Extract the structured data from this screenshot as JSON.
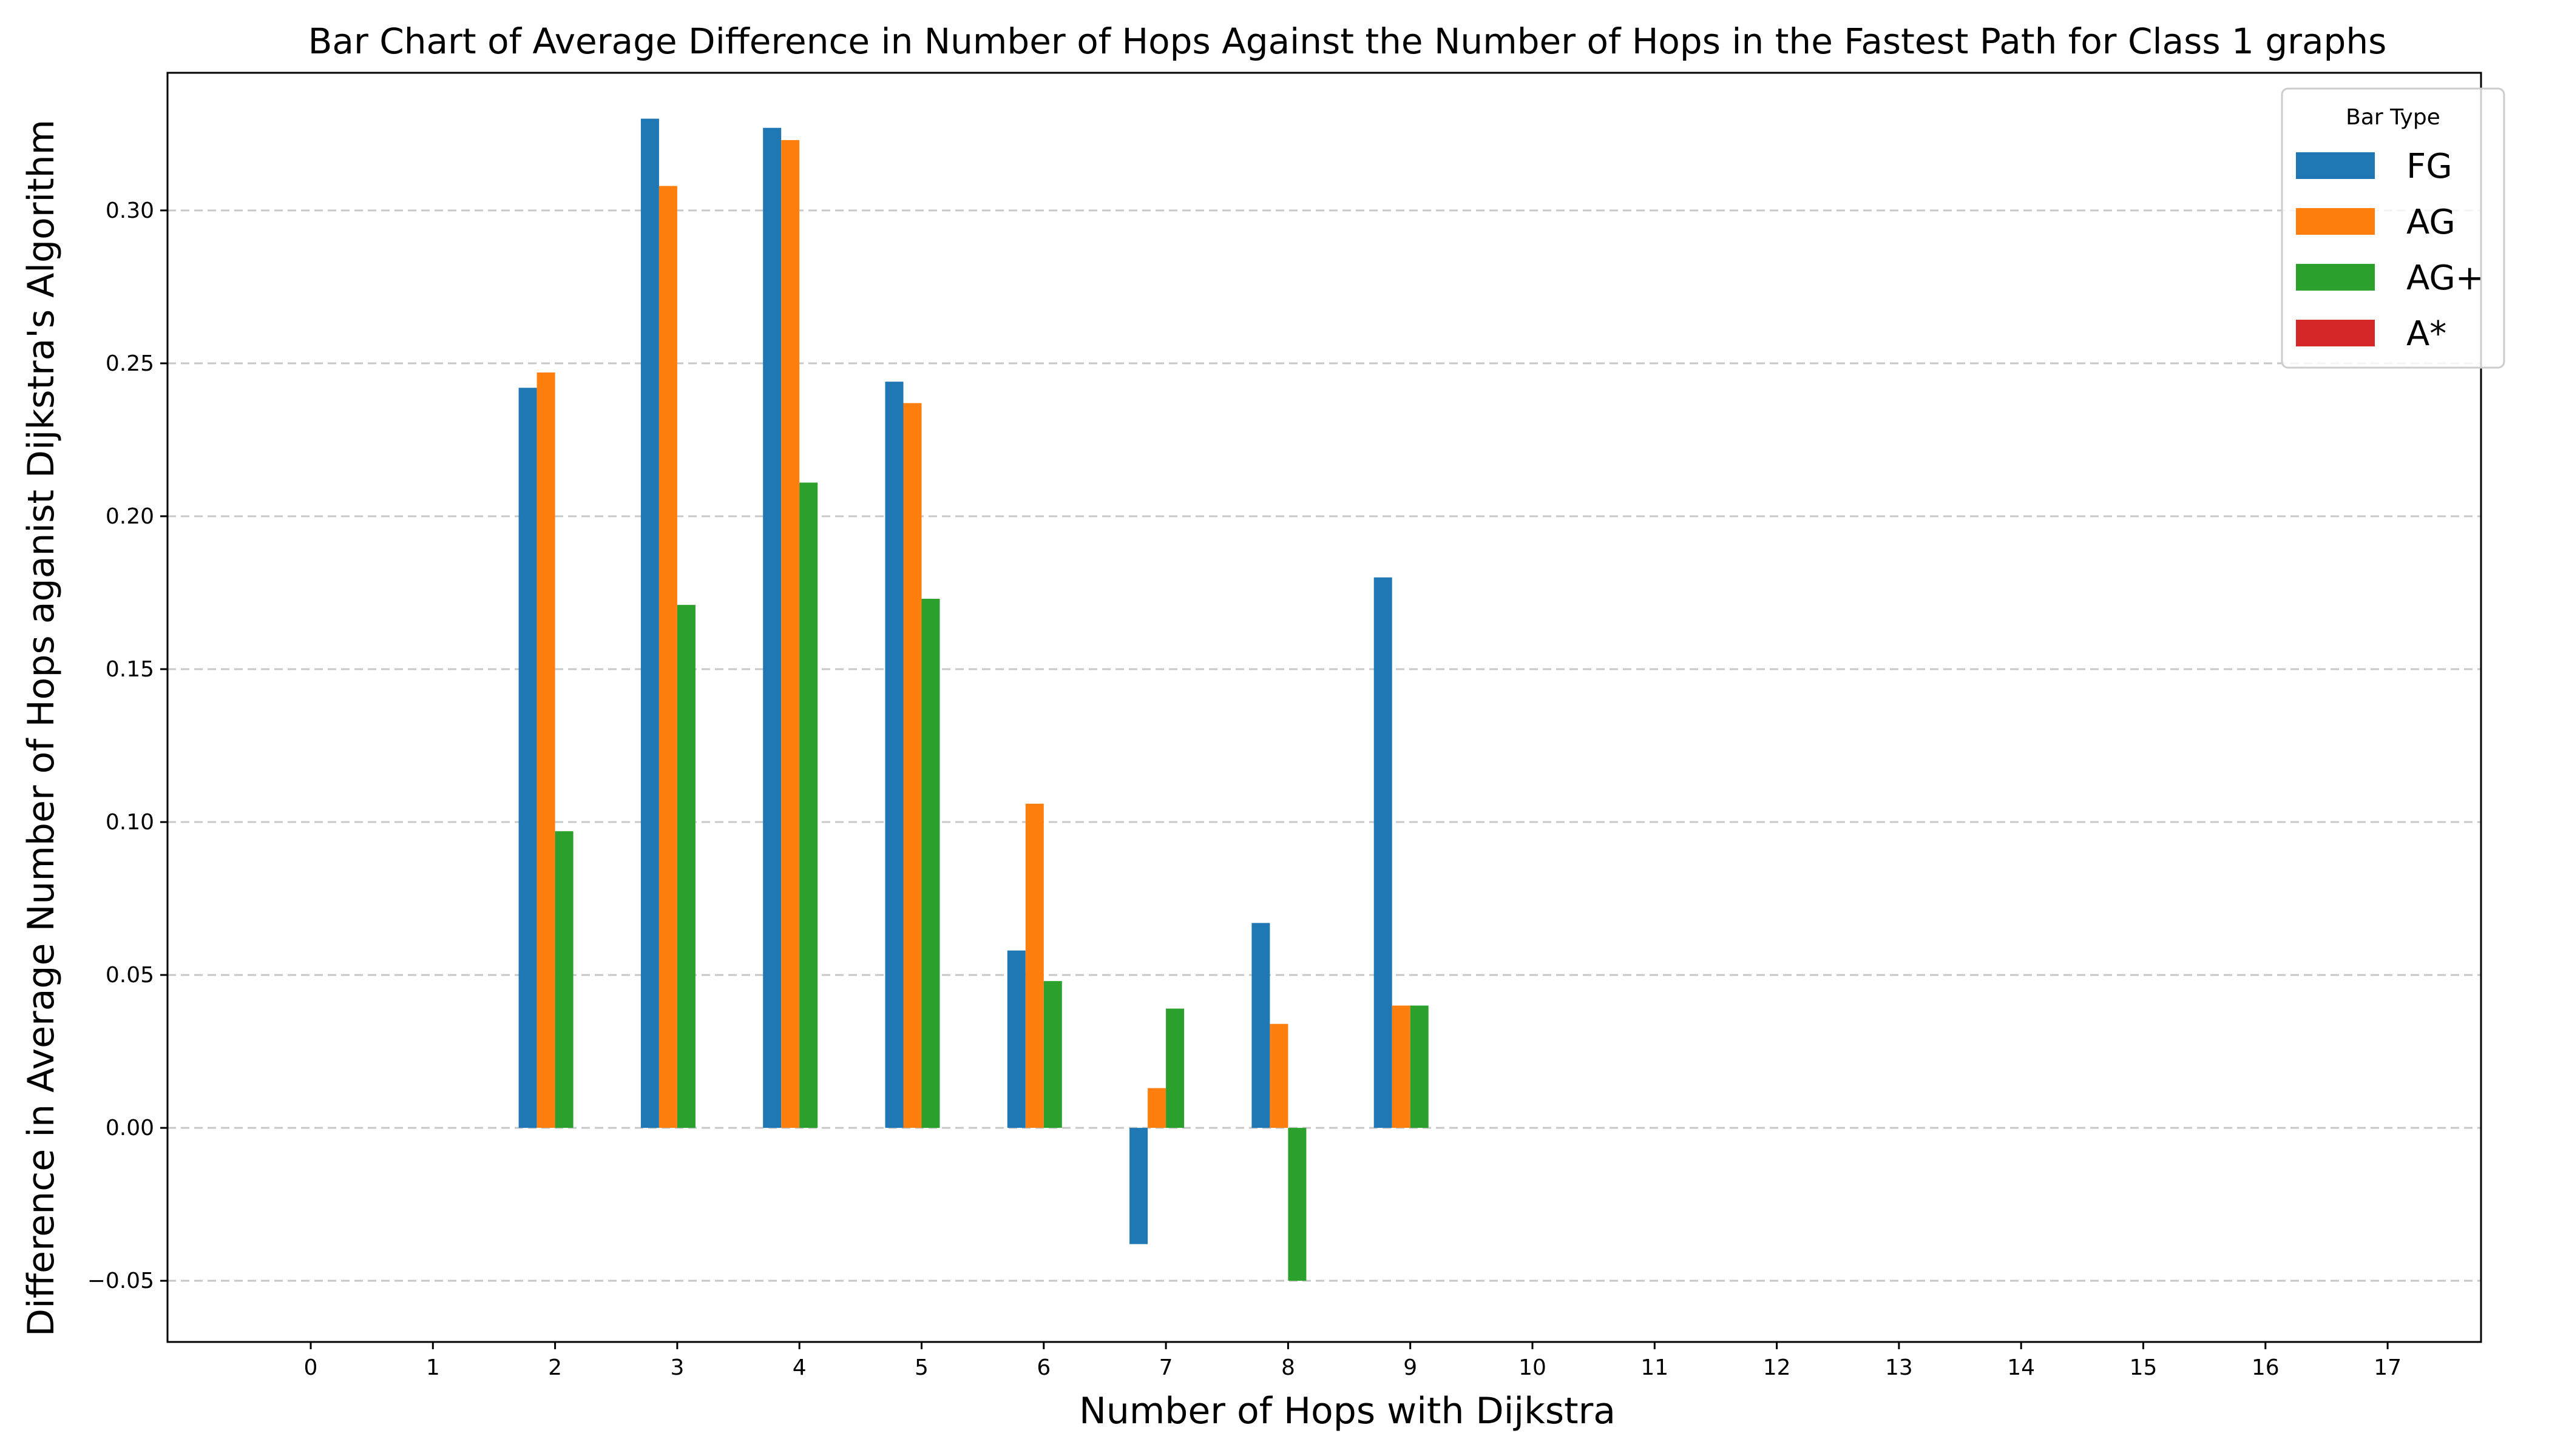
{
  "chart_data": {
    "type": "bar",
    "title": "Bar Chart of Average Difference in Number of Hops Against the Number of Hops in the Fastest Path for Class 1 graphs",
    "xlabel": "Number of Hops with Dijkstra",
    "ylabel": "Difference in Average Number of Hops aganist Dijkstra's Algorithm",
    "categories": [
      "0",
      "1",
      "2",
      "3",
      "4",
      "5",
      "6",
      "7",
      "8",
      "9",
      "10",
      "11",
      "12",
      "13",
      "14",
      "15",
      "16",
      "17"
    ],
    "ylim": [
      -0.07,
      0.345
    ],
    "yticks": [
      -0.05,
      0.0,
      0.05,
      0.1,
      0.15,
      0.2,
      0.25,
      0.3
    ],
    "ytick_labels": [
      "−0.05",
      "0.00",
      "0.05",
      "0.10",
      "0.15",
      "0.20",
      "0.25",
      "0.30"
    ],
    "grid": "horizontal dashed",
    "legend": {
      "title": "Bar Type",
      "placement": "top-right"
    },
    "series": [
      {
        "name": "FG",
        "color": "#1f77b4",
        "values": [
          0,
          0,
          0.242,
          0.33,
          0.327,
          0.244,
          0.058,
          -0.038,
          0.067,
          0.18,
          0,
          0,
          0,
          0,
          0,
          0,
          0,
          0
        ]
      },
      {
        "name": "AG",
        "color": "#ff7f0e",
        "values": [
          0,
          0,
          0.247,
          0.308,
          0.323,
          0.237,
          0.106,
          0.013,
          0.034,
          0.04,
          0,
          0,
          0,
          0,
          0,
          0,
          0,
          0
        ]
      },
      {
        "name": "AG+",
        "color": "#2ca02c",
        "values": [
          0,
          0,
          0.097,
          0.171,
          0.211,
          0.173,
          0.048,
          0.039,
          -0.05,
          0.04,
          0,
          0,
          0,
          0,
          0,
          0,
          0,
          0
        ]
      },
      {
        "name": "A*",
        "color": "#d62728",
        "values": [
          0,
          0,
          0,
          0,
          0,
          0,
          0,
          0,
          0,
          0,
          0,
          0,
          0,
          0,
          0,
          0,
          0,
          0
        ]
      }
    ]
  }
}
